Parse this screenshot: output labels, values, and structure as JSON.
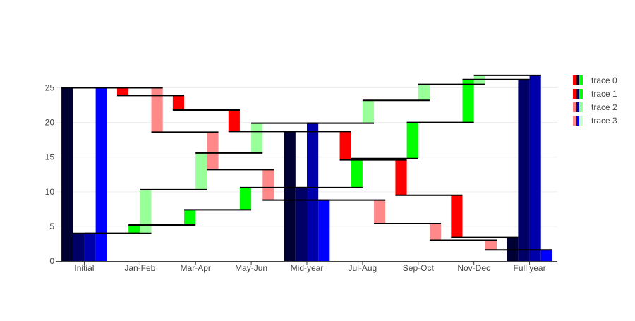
{
  "chart_data": {
    "type": "waterfall",
    "title": "",
    "xlabel": "",
    "ylabel": "",
    "ylim": [
      0,
      27.5
    ],
    "yticks": [
      0,
      5,
      10,
      15,
      20,
      25
    ],
    "grid": true,
    "legend_position": "right",
    "categories": [
      "Initial",
      "Jan-Feb",
      "Mar-Apr",
      "May-Jun",
      "Mid-year",
      "Jul-Aug",
      "Sep-Oct",
      "Nov-Dec",
      "Full year"
    ],
    "series": [
      {
        "name": "trace 0",
        "colors": {
          "totals": "#000033",
          "increasing": "#00ff00",
          "decreasing": "#ff0000"
        },
        "steps": [
          {
            "category": "Initial",
            "kind": "total",
            "value": 25
          },
          {
            "category": "Jan-Feb",
            "kind": "relative",
            "value": -1.1
          },
          {
            "category": "Mar-Apr",
            "kind": "relative",
            "value": -2.1
          },
          {
            "category": "May-Jun",
            "kind": "relative",
            "value": -3.1
          },
          {
            "category": "Mid-year",
            "kind": "total",
            "value": 18.7
          },
          {
            "category": "Jul-Aug",
            "kind": "relative",
            "value": -4.1
          },
          {
            "category": "Sep-Oct",
            "kind": "relative",
            "value": -5.1
          },
          {
            "category": "Nov-Dec",
            "kind": "relative",
            "value": -6.1
          },
          {
            "category": "Full year",
            "kind": "total",
            "value": 3.4
          }
        ]
      },
      {
        "name": "trace 1",
        "colors": {
          "totals": "#000066",
          "increasing": "#00ff00",
          "decreasing": "#ff0000"
        },
        "steps": [
          {
            "category": "Initial",
            "kind": "total",
            "value": 4
          },
          {
            "category": "Jan-Feb",
            "kind": "relative",
            "value": 1.2
          },
          {
            "category": "Mar-Apr",
            "kind": "relative",
            "value": 2.2
          },
          {
            "category": "May-Jun",
            "kind": "relative",
            "value": 3.2
          },
          {
            "category": "Mid-year",
            "kind": "total",
            "value": 10.6
          },
          {
            "category": "Jul-Aug",
            "kind": "relative",
            "value": 4.2
          },
          {
            "category": "Sep-Oct",
            "kind": "relative",
            "value": 5.2
          },
          {
            "category": "Nov-Dec",
            "kind": "relative",
            "value": 6.2
          },
          {
            "category": "Full year",
            "kind": "total",
            "value": 26.2
          }
        ]
      },
      {
        "name": "trace 2",
        "colors": {
          "totals": "#0000aa",
          "increasing": "#99ff99",
          "decreasing": "#ff7777"
        },
        "steps": [
          {
            "category": "Initial",
            "kind": "total",
            "value": 4
          },
          {
            "category": "Jan-Feb",
            "kind": "relative",
            "value": 6.3
          },
          {
            "category": "Mar-Apr",
            "kind": "relative",
            "value": 5.3
          },
          {
            "category": "May-Jun",
            "kind": "relative",
            "value": 4.3
          },
          {
            "category": "Mid-year",
            "kind": "total",
            "value": 19.9
          },
          {
            "category": "Jul-Aug",
            "kind": "relative",
            "value": 3.3
          },
          {
            "category": "Sep-Oct",
            "kind": "relative",
            "value": 2.3
          },
          {
            "category": "Nov-Dec",
            "kind": "relative",
            "value": 1.3
          },
          {
            "category": "Full year",
            "kind": "total",
            "value": 26.8
          }
        ]
      },
      {
        "name": "trace 3",
        "colors": {
          "totals": "#0000ff",
          "increasing": "#ccffcc",
          "decreasing": "#ff8888"
        },
        "steps": [
          {
            "category": "Initial",
            "kind": "total",
            "value": 25
          },
          {
            "category": "Jan-Feb",
            "kind": "relative",
            "value": -6.4
          },
          {
            "category": "Mar-Apr",
            "kind": "relative",
            "value": -5.4
          },
          {
            "category": "May-Jun",
            "kind": "relative",
            "value": -4.4
          },
          {
            "category": "Mid-year",
            "kind": "total",
            "value": 8.8
          },
          {
            "category": "Jul-Aug",
            "kind": "relative",
            "value": -3.4
          },
          {
            "category": "Sep-Oct",
            "kind": "relative",
            "value": -2.4
          },
          {
            "category": "Nov-Dec",
            "kind": "relative",
            "value": -1.4
          },
          {
            "category": "Full year",
            "kind": "total",
            "value": 1.6
          }
        ]
      }
    ]
  }
}
